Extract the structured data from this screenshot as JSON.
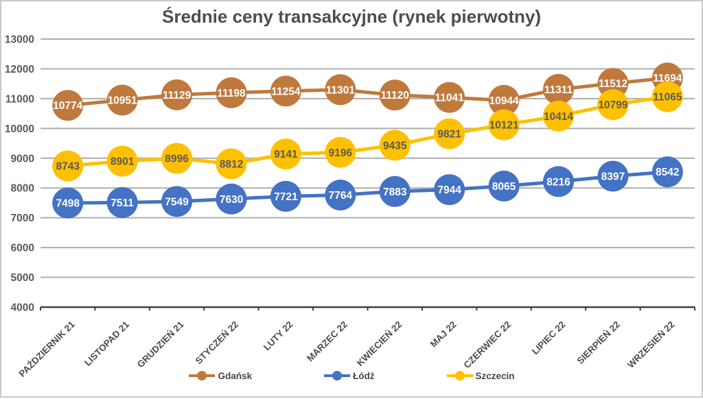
{
  "chart_data": {
    "type": "line",
    "title": "Średnie ceny transakcyjne (rynek pierwotny)",
    "categories": [
      "PAŹDZIERNIK 21",
      "LISTOPAD 21",
      "GRUDZIEŃ 21",
      "STYCZEŃ 22",
      "LUTY 22",
      "MARZEC 22",
      "KWIECIEŃ 22",
      "MAJ 22",
      "CZERWIEC 22",
      "LIPIEC 22",
      "SIERPIEŃ 22",
      "WRZESIEŃ 22"
    ],
    "series": [
      {
        "name": "Gdańsk",
        "color": "#c0793d",
        "label_color": "#ffffff",
        "values": [
          10774,
          10951,
          11129,
          11198,
          11254,
          11301,
          11120,
          11041,
          10944,
          11311,
          11512,
          11694
        ]
      },
      {
        "name": "Łódź",
        "color": "#4472c4",
        "label_color": "#ffffff",
        "values": [
          7498,
          7511,
          7549,
          7630,
          7721,
          7764,
          7883,
          7944,
          8065,
          8216,
          8397,
          8542
        ]
      },
      {
        "name": "Szczecin",
        "color": "#ffc000",
        "label_color": "#595959",
        "values": [
          8743,
          8901,
          8996,
          8812,
          9141,
          9196,
          9435,
          9821,
          10121,
          10414,
          10799,
          11065
        ]
      }
    ],
    "ylim": [
      4000,
      13000
    ],
    "ytick_step": 1000,
    "ytick_labels": [
      "4000",
      "5000",
      "6000",
      "7000",
      "8000",
      "9000",
      "10000",
      "11000",
      "12000",
      "13000"
    ],
    "grid": true,
    "legend_position": "bottom",
    "colors": {
      "text": "#595959",
      "xlabel_text": "#4a4a4a",
      "grid": "#adadad",
      "axis": "#3f3f3f",
      "background": "#ffffff"
    }
  }
}
